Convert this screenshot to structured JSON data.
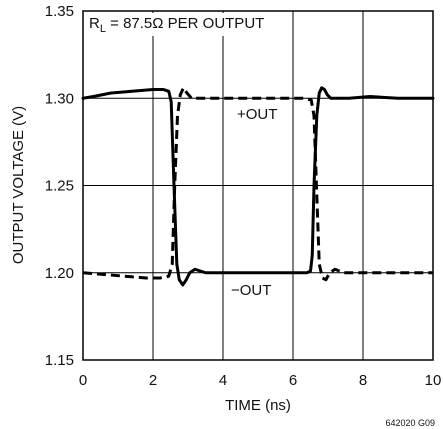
{
  "chart_data": {
    "type": "line",
    "xlabel": "TIME (ns)",
    "ylabel": "OUTPUT VOLTAGE (V)",
    "xlim": [
      0,
      10
    ],
    "ylim": [
      1.15,
      1.35
    ],
    "x_ticks": [
      "0",
      "2",
      "4",
      "6",
      "8",
      "10"
    ],
    "y_ticks": [
      "1.15",
      "1.20",
      "1.25",
      "1.30",
      "1.35"
    ],
    "grid": true,
    "annotations": {
      "condition_main": "R",
      "condition_sub": "L",
      "condition_rest": " = 87.5Ω PER OUTPUT",
      "plus_out": "+OUT",
      "minus_out": "−OUT",
      "figure_code": "642020 G09"
    },
    "series": [
      {
        "x": [
          0,
          0.3,
          0.8,
          1.4,
          2.0,
          2.3,
          2.45,
          2.52,
          2.6,
          2.68,
          2.75,
          2.85,
          2.95,
          3.05,
          3.2,
          3.5,
          4.2,
          5.0,
          6.0,
          6.4,
          6.5,
          6.55,
          6.6,
          6.68,
          6.75,
          6.82,
          6.9,
          6.98,
          7.08,
          7.25,
          7.6,
          8.2,
          9.0,
          10.0
        ],
        "y": [
          1.3,
          1.301,
          1.303,
          1.304,
          1.305,
          1.305,
          1.304,
          1.298,
          1.25,
          1.205,
          1.196,
          1.193,
          1.196,
          1.2,
          1.202,
          1.2,
          1.2,
          1.2,
          1.2,
          1.2,
          1.201,
          1.21,
          1.25,
          1.29,
          1.303,
          1.306,
          1.305,
          1.302,
          1.3,
          1.3,
          1.3,
          1.301,
          1.3,
          1.3
        ]
      },
      {
        "x": [
          0,
          0.6,
          1.2,
          1.8,
          2.2,
          2.45,
          2.55,
          2.62,
          2.7,
          2.78,
          2.87,
          2.97,
          3.1,
          3.3,
          3.7,
          4.5,
          5.5,
          6.3,
          6.52,
          6.6,
          6.67,
          6.75,
          6.84,
          6.94,
          7.05,
          7.2,
          7.45,
          7.9,
          8.6,
          9.4,
          10.0
        ],
        "y": [
          1.2,
          1.199,
          1.198,
          1.197,
          1.197,
          1.198,
          1.205,
          1.25,
          1.29,
          1.302,
          1.306,
          1.303,
          1.3,
          1.3,
          1.3,
          1.3,
          1.3,
          1.3,
          1.299,
          1.29,
          1.25,
          1.205,
          1.197,
          1.196,
          1.2,
          1.202,
          1.2,
          1.2,
          1.2,
          1.2,
          1.2
        ]
      }
    ]
  }
}
